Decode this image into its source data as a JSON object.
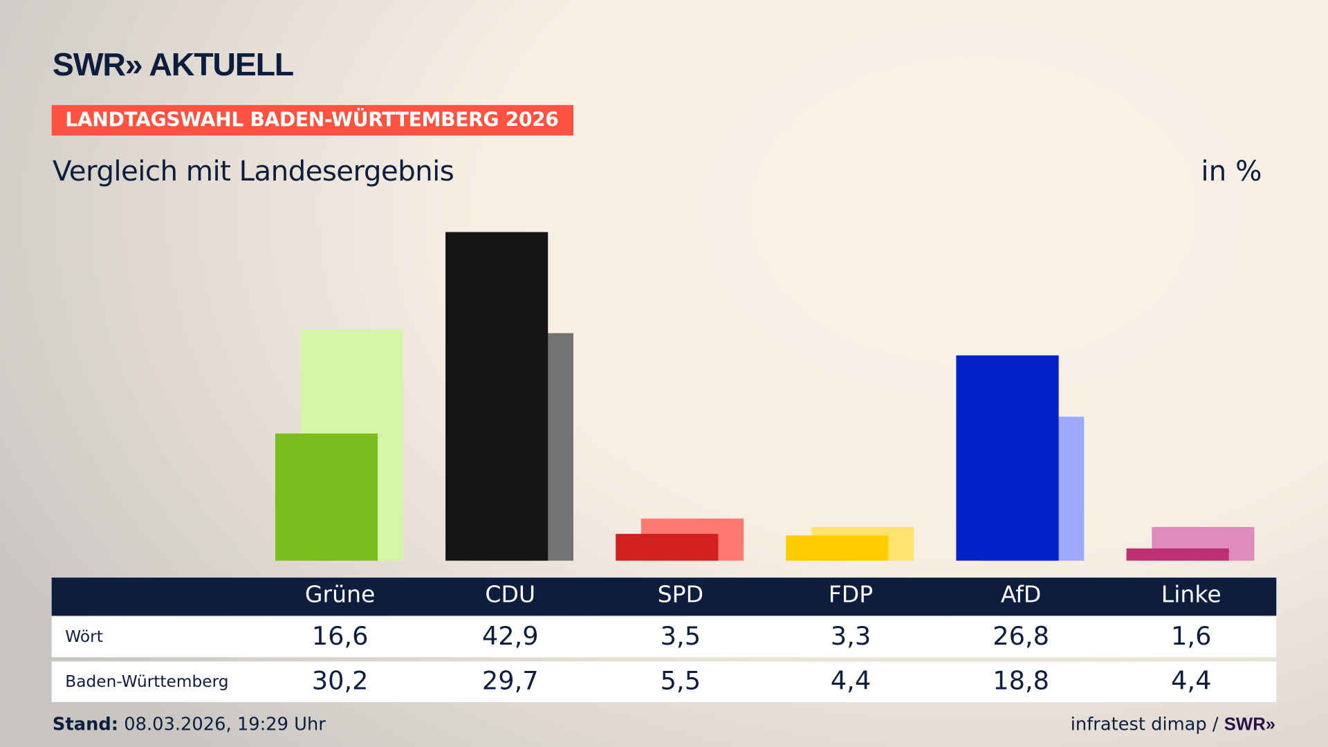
{
  "header": {
    "logo": "SWR» AKTUELL",
    "kicker": "LANDTAGSWAHL BADEN-WÜRTTEMBERG 2026",
    "subtitle": "Vergleich mit Landesergebnis",
    "unit": "in %"
  },
  "chart_data": {
    "type": "bar",
    "categories": [
      "Grüne",
      "CDU",
      "SPD",
      "FDP",
      "AfD",
      "Linke"
    ],
    "series": [
      {
        "name": "Wört",
        "values": [
          16.6,
          42.9,
          3.5,
          3.3,
          26.8,
          1.6
        ]
      },
      {
        "name": "Baden-Württemberg",
        "values": [
          30.2,
          29.7,
          5.5,
          4.4,
          18.8,
          4.4
        ]
      }
    ],
    "colors": {
      "Wört": [
        "#7abd1c",
        "#141414",
        "#d41f1f",
        "#ffcc00",
        "#0021c8",
        "#bd3075"
      ],
      "Baden-Württemberg": [
        "#d5f5a8",
        "#737373",
        "#ff7a70",
        "#ffe36e",
        "#9dabff",
        "#df8cbd"
      ]
    },
    "ylim": [
      0,
      42.9
    ],
    "grid": false
  },
  "footer": {
    "stand_label": "Stand:",
    "stand_value": "08.03.2026, 19:29 Uhr",
    "source": "infratest dimap /",
    "source_logo": "SWR»"
  }
}
